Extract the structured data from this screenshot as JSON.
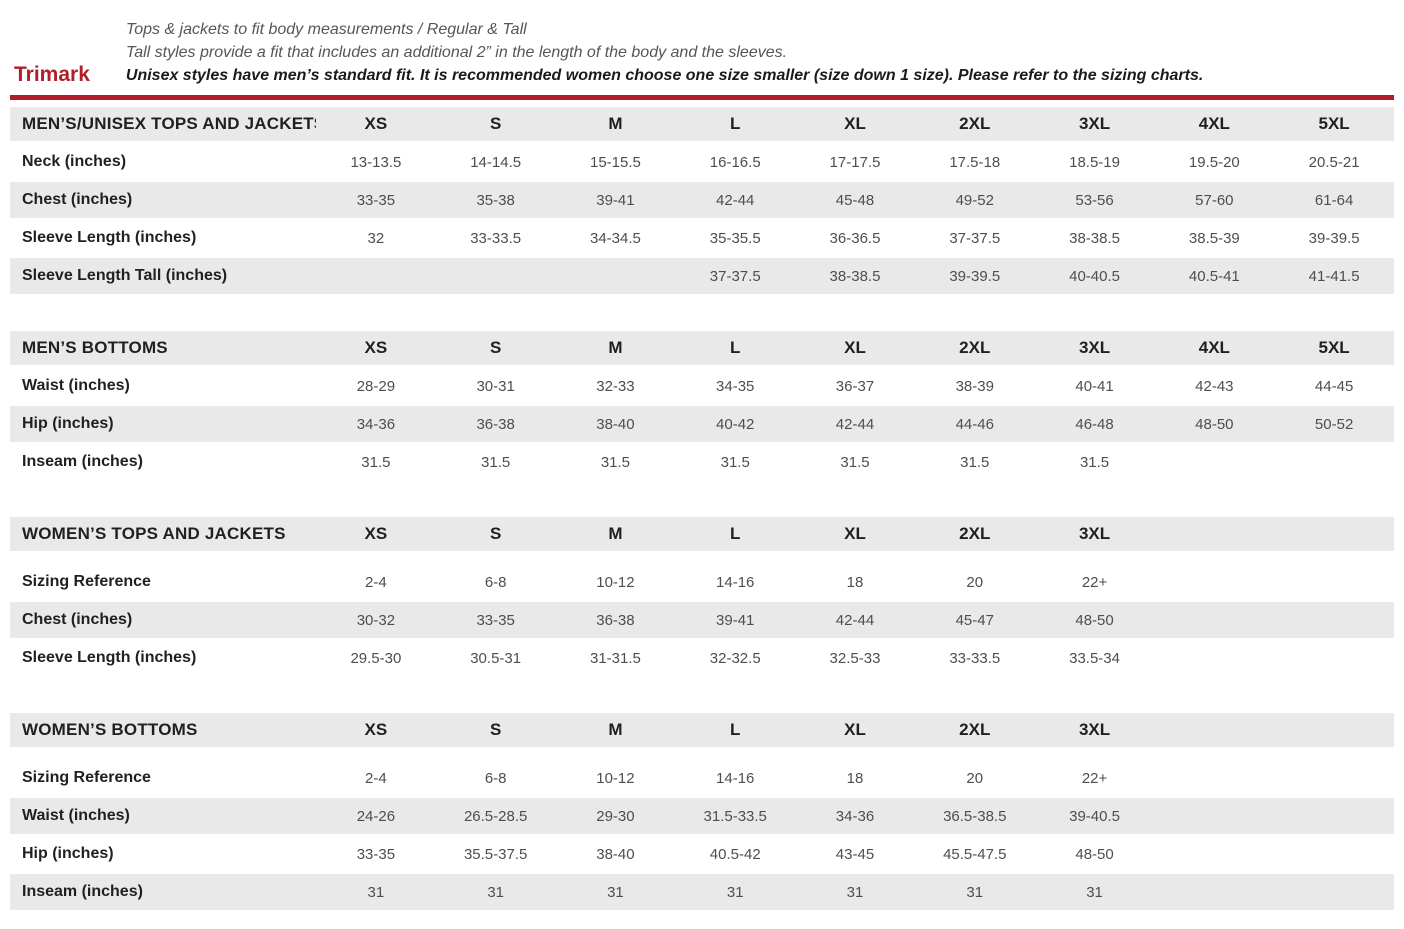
{
  "header": {
    "brand": "Trimark",
    "line1": "Tops & jackets to fit body measurements / Regular & Tall",
    "line2": "Tall styles provide a fit that includes an additional 2” in the length of the body and the sleeves.",
    "line3": "Unisex styles have men’s standard fit. It is recommended women choose one size smaller (size down 1 size).  Please refer to the sizing charts."
  },
  "colors": {
    "accent_red": "#b01e2b",
    "row_stripe": "#e9e9e9"
  },
  "tables": [
    {
      "title": "MEN’S/UNISEX TOPS AND JACKETS",
      "sizes": [
        "XS",
        "S",
        "M",
        "L",
        "XL",
        "2XL",
        "3XL",
        "4XL",
        "5XL"
      ],
      "rows": [
        {
          "label": "Neck (inches)",
          "values": [
            "13-13.5",
            "14-14.5",
            "15-15.5",
            "16-16.5",
            "17-17.5",
            "17.5-18",
            "18.5-19",
            "19.5-20",
            "20.5-21"
          ]
        },
        {
          "label": "Chest (inches)",
          "values": [
            "33-35",
            "35-38",
            "39-41",
            "42-44",
            "45-48",
            "49-52",
            "53-56",
            "57-60",
            "61-64"
          ]
        },
        {
          "label": "Sleeve Length (inches)",
          "values": [
            "32",
            "33-33.5",
            "34-34.5",
            "35-35.5",
            "36-36.5",
            "37-37.5",
            "38-38.5",
            "38.5-39",
            "39-39.5"
          ]
        },
        {
          "label": "Sleeve Length Tall (inches)",
          "values": [
            "",
            "",
            "",
            "37-37.5",
            "38-38.5",
            "39-39.5",
            "40-40.5",
            "40.5-41",
            "41-41.5"
          ]
        }
      ]
    },
    {
      "title": "MEN’S BOTTOMS",
      "sizes": [
        "XS",
        "S",
        "M",
        "L",
        "XL",
        "2XL",
        "3XL",
        "4XL",
        "5XL"
      ],
      "rows": [
        {
          "label": "Waist (inches)",
          "values": [
            "28-29",
            "30-31",
            "32-33",
            "34-35",
            "36-37",
            "38-39",
            "40-41",
            "42-43",
            "44-45"
          ]
        },
        {
          "label": "Hip (inches)",
          "values": [
            "34-36",
            "36-38",
            "38-40",
            "40-42",
            "42-44",
            "44-46",
            "46-48",
            "48-50",
            "50-52"
          ]
        },
        {
          "label": "Inseam (inches)",
          "values": [
            "31.5",
            "31.5",
            "31.5",
            "31.5",
            "31.5",
            "31.5",
            "31.5",
            "",
            ""
          ]
        }
      ]
    },
    {
      "title": "WOMEN’S TOPS AND JACKETS",
      "sizes": [
        "XS",
        "S",
        "M",
        "L",
        "XL",
        "2XL",
        "3XL",
        "",
        ""
      ],
      "rows": [
        {
          "label": "Sizing Reference",
          "values": [
            "2-4",
            "6-8",
            "10-12",
            "14-16",
            "18",
            "20",
            "22+",
            "",
            ""
          ]
        },
        {
          "label": "Chest (inches)",
          "values": [
            "30-32",
            "33-35",
            "36-38",
            "39-41",
            "42-44",
            "45-47",
            "48-50",
            "",
            ""
          ]
        },
        {
          "label": "Sleeve Length (inches)",
          "values": [
            "29.5-30",
            "30.5-31",
            "31-31.5",
            "32-32.5",
            "32.5-33",
            "33-33.5",
            "33.5-34",
            "",
            ""
          ]
        }
      ]
    },
    {
      "title": "WOMEN’S BOTTOMS",
      "sizes": [
        "XS",
        "S",
        "M",
        "L",
        "XL",
        "2XL",
        "3XL",
        "",
        ""
      ],
      "rows": [
        {
          "label": "Sizing Reference",
          "values": [
            "2-4",
            "6-8",
            "10-12",
            "14-16",
            "18",
            "20",
            "22+",
            "",
            ""
          ]
        },
        {
          "label": "Waist (inches)",
          "values": [
            "24-26",
            "26.5-28.5",
            "29-30",
            "31.5-33.5",
            "34-36",
            "36.5-38.5",
            "39-40.5",
            "",
            ""
          ]
        },
        {
          "label": "Hip (inches)",
          "values": [
            "33-35",
            "35.5-37.5",
            "38-40",
            "40.5-42",
            "43-45",
            "45.5-47.5",
            "48-50",
            "",
            ""
          ]
        },
        {
          "label": "Inseam (inches)",
          "values": [
            "31",
            "31",
            "31",
            "31",
            "31",
            "31",
            "31",
            "",
            ""
          ]
        }
      ]
    }
  ]
}
